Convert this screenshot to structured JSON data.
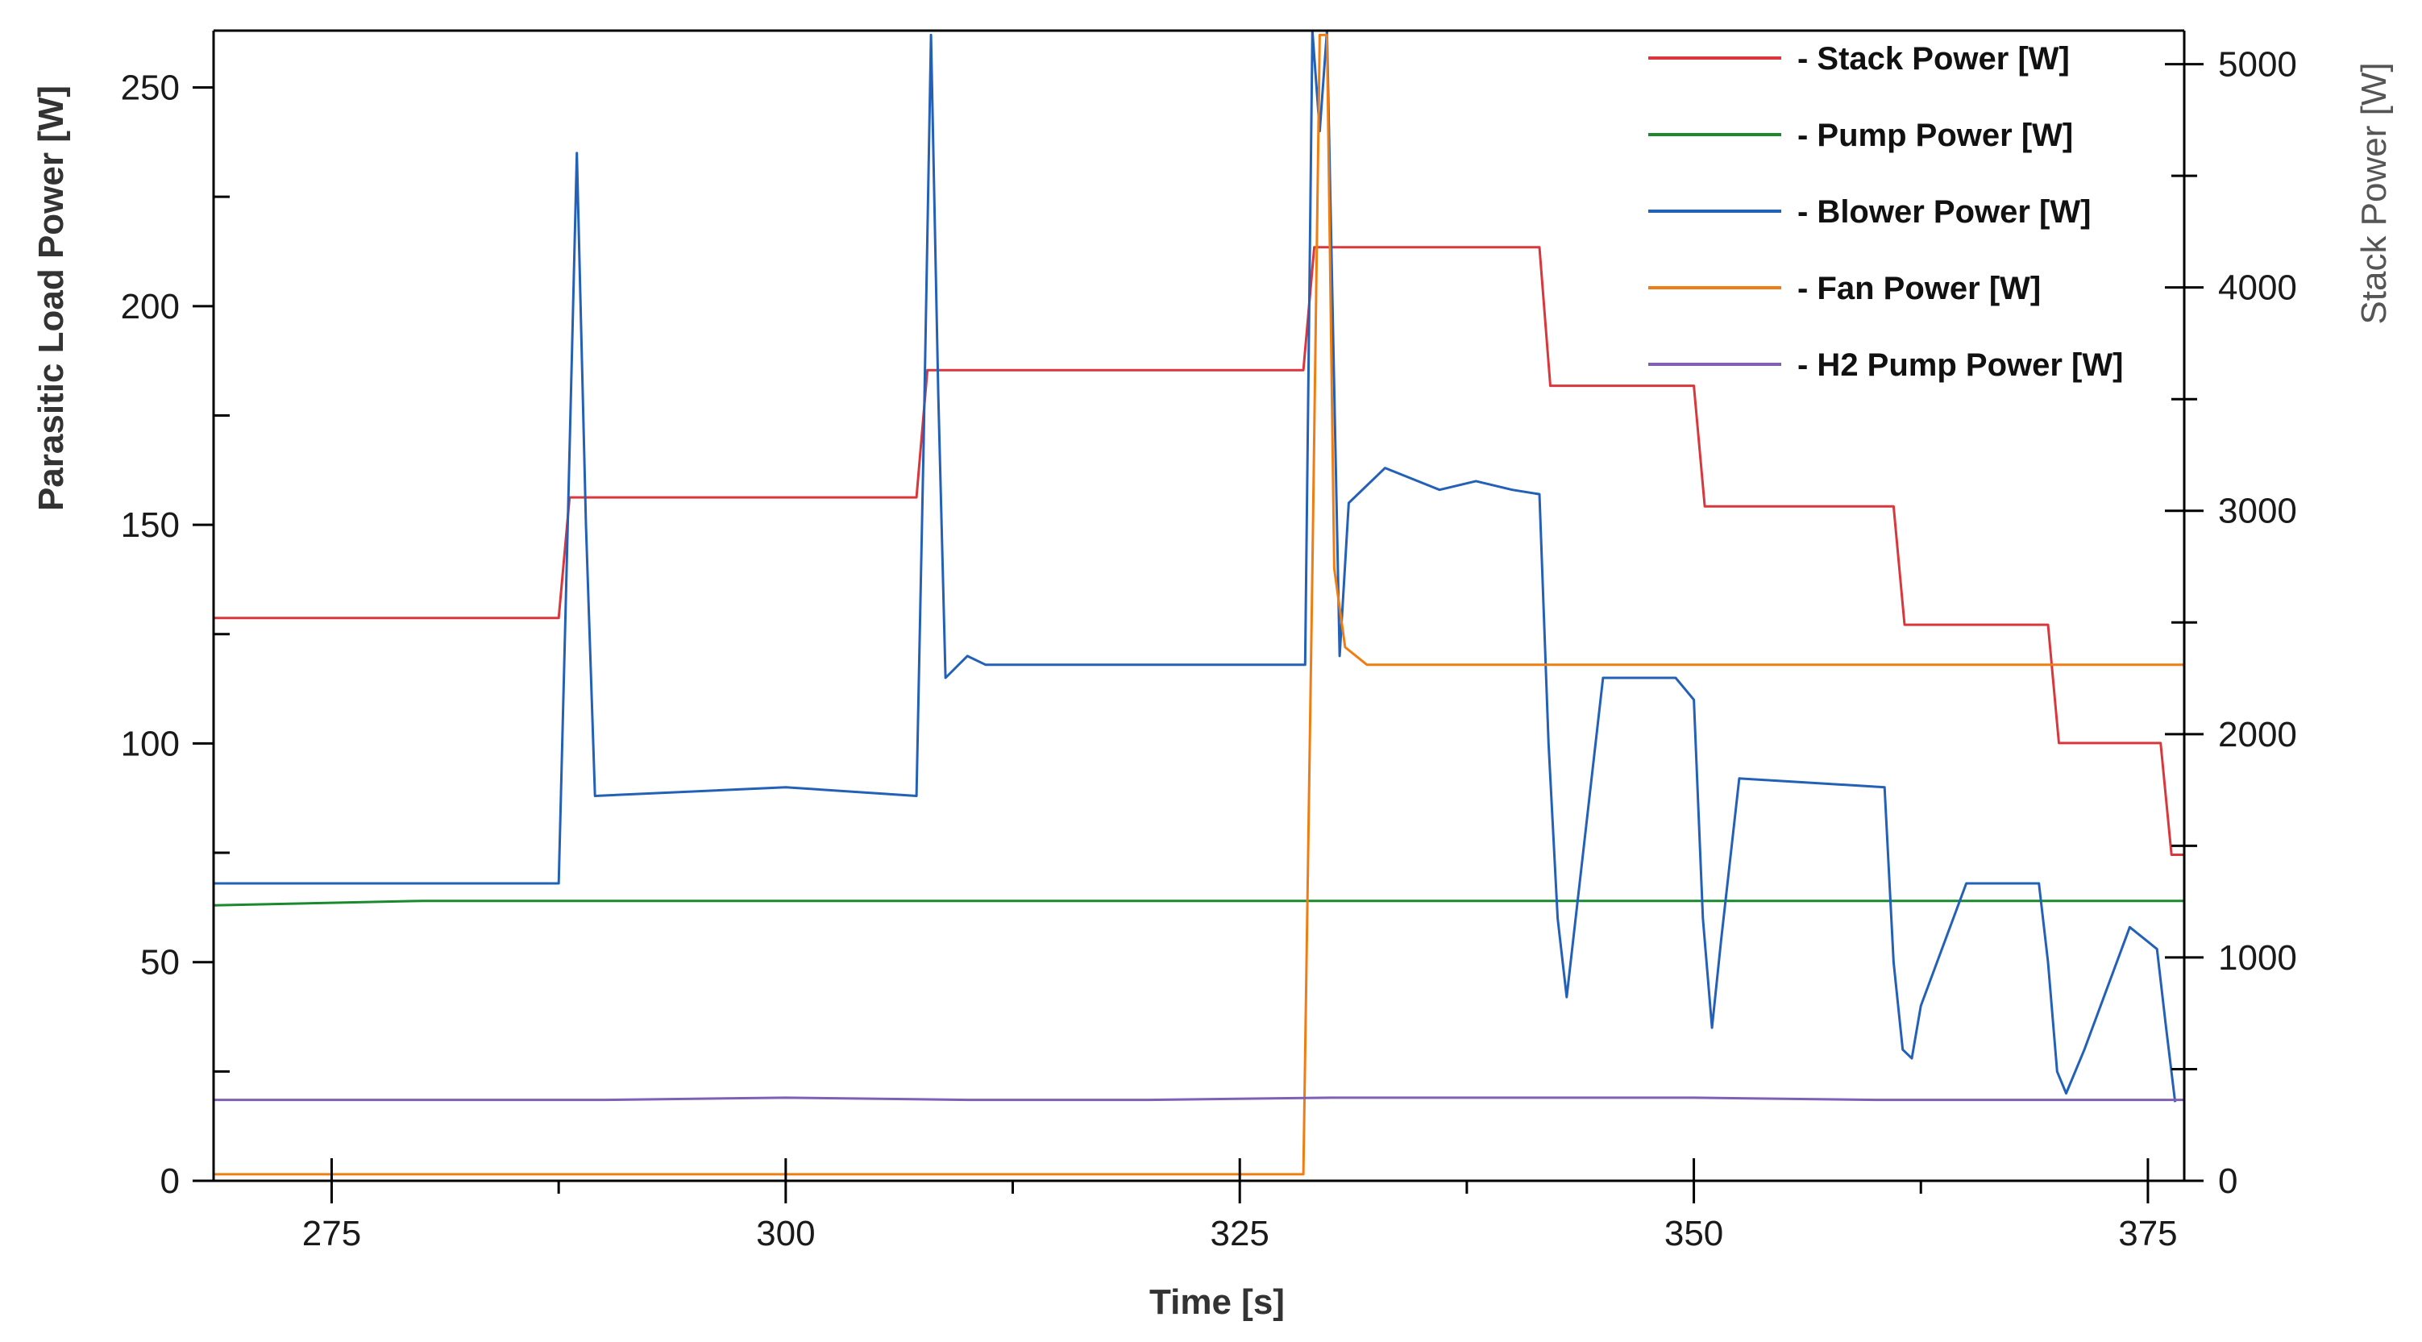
{
  "chart_data": {
    "type": "line",
    "title": "",
    "xlabel": "Time [s]",
    "ylabel_left": "Parasitic Load Power [W]",
    "ylabel_right": "Stack Power [W]",
    "xlim": [
      268.5,
      377
    ],
    "ylim_left": [
      0,
      263
    ],
    "ylim_right": [
      0,
      5150
    ],
    "xticks": [
      275,
      300,
      325,
      350,
      375
    ],
    "xtick_labels": [
      "275",
      "300",
      "325",
      "350",
      "375"
    ],
    "yticks_left": [
      0,
      50,
      100,
      150,
      200,
      250
    ],
    "ytick_labels_left": [
      "0",
      "50",
      "100",
      "150",
      "200",
      "250"
    ],
    "yticks_right": [
      0,
      1000,
      2000,
      3000,
      4000,
      5000
    ],
    "ytick_labels_right": [
      "0",
      "1000",
      "2000",
      "3000",
      "4000",
      "5000"
    ],
    "legend_position": "top-right",
    "series": [
      {
        "name": "- Stack Power [W]",
        "axis": "right",
        "color": "#d9373c",
        "x": [
          268.5,
          287.5,
          288.1,
          307.2,
          307.8,
          328.5,
          329.1,
          341.5,
          342.1,
          350.0,
          350.6,
          361.0,
          361.6,
          369.5,
          370.1,
          375.7,
          376.3,
          377.0
        ],
        "y": [
          2520,
          2520,
          3060,
          3060,
          3630,
          3630,
          4180,
          4180,
          3560,
          3560,
          3020,
          3020,
          2490,
          2490,
          1960,
          1960,
          1460,
          1460
        ]
      },
      {
        "name": "- Pump Power [W]",
        "axis": "left",
        "color": "#1a8a2e",
        "x": [
          268.5,
          280,
          290,
          300,
          310,
          320,
          330,
          340,
          350,
          360,
          370,
          377
        ],
        "y": [
          63,
          64,
          64,
          64,
          64,
          64,
          64,
          64,
          64,
          64,
          64,
          64
        ]
      },
      {
        "name": "- Blower Power [W]",
        "axis": "left",
        "color": "#2360b8",
        "x": [
          268.5,
          287.5,
          288.0,
          288.5,
          289.0,
          289.5,
          300.0,
          307.2,
          307.6,
          308.0,
          308.4,
          308.8,
          310.0,
          311.0,
          328.0,
          328.6,
          329.0,
          329.4,
          329.8,
          330.5,
          331.0,
          333.0,
          336.0,
          338.0,
          340.0,
          341.5,
          342.0,
          342.5,
          343.0,
          345.0,
          349.0,
          350.0,
          350.5,
          351.0,
          351.5,
          352.5,
          360.5,
          361.0,
          361.5,
          362.0,
          362.5,
          365.0,
          369.0,
          369.5,
          370.0,
          370.5,
          371.5,
          374.0,
          375.5,
          376.0,
          376.5
        ],
        "y": [
          68,
          68,
          150,
          235,
          150,
          88,
          90,
          88,
          170,
          262,
          180,
          115,
          120,
          118,
          118,
          118,
          263,
          240,
          263,
          120,
          155,
          163,
          158,
          160,
          158,
          157,
          100,
          60,
          42,
          115,
          115,
          110,
          60,
          35,
          55,
          92,
          90,
          50,
          30,
          28,
          40,
          68,
          68,
          50,
          25,
          20,
          30,
          58,
          53,
          35,
          18
        ]
      },
      {
        "name": "- Fan Power [W]",
        "axis": "left",
        "color": "#f07d12",
        "x": [
          268.5,
          328.5,
          329.0,
          329.4,
          329.8,
          330.2,
          330.8,
          332.0,
          340.0,
          350.0,
          360.0,
          370.0,
          377.0
        ],
        "y": [
          1.5,
          1.5,
          140,
          262,
          262,
          140,
          122,
          118,
          118,
          118,
          118,
          118,
          118
        ]
      },
      {
        "name": "- H2 Pump Power [W]",
        "axis": "left",
        "color": "#8060b5",
        "x": [
          268.5,
          280,
          290,
          300,
          310,
          320,
          330,
          340,
          350,
          360,
          370,
          377
        ],
        "y": [
          18.5,
          18.5,
          18.5,
          19,
          18.5,
          18.5,
          19,
          19,
          19,
          18.5,
          18.5,
          18.5
        ]
      }
    ]
  }
}
